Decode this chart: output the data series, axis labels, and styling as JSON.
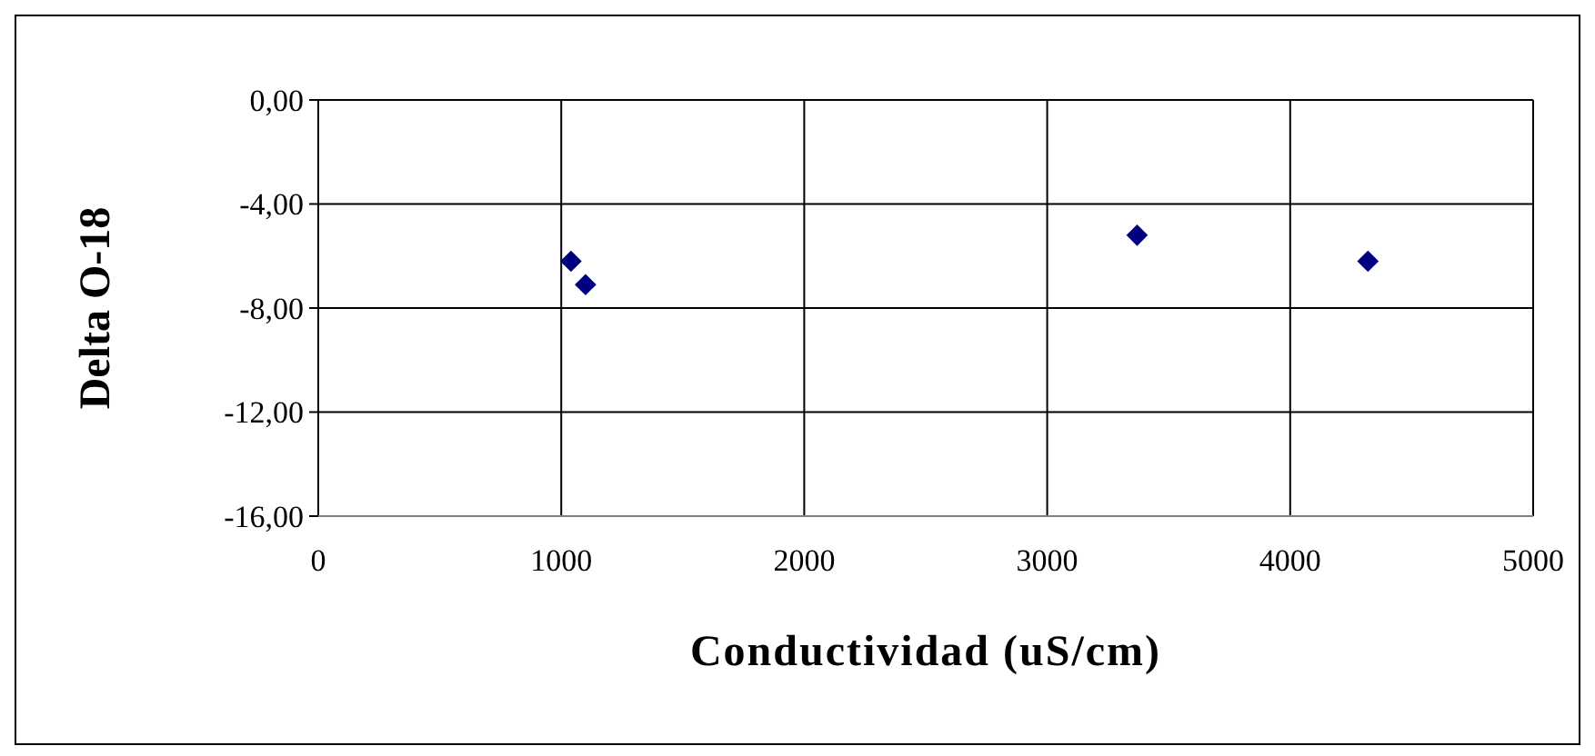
{
  "chart_data": {
    "type": "scatter",
    "xlabel": "Conductividad (uS/cm)",
    "ylabel": "Delta O-18",
    "x": [
      1040,
      1100,
      3370,
      4320
    ],
    "values": [
      -6.2,
      -7.1,
      -5.2,
      -6.2
    ],
    "color": "#000080",
    "marker": "diamond",
    "xlim": [
      0,
      5000
    ],
    "xticks": [
      0,
      1000,
      2000,
      3000,
      4000,
      5000
    ],
    "ylim": [
      -16,
      0
    ],
    "yticks": [
      {
        "value": 0,
        "label": "0,00"
      },
      {
        "value": -4,
        "label": "-4,00"
      },
      {
        "value": -8,
        "label": "-8,00"
      },
      {
        "value": -12,
        "label": "-12,00"
      },
      {
        "value": -16,
        "label": "-16,00"
      }
    ],
    "grid": true
  }
}
